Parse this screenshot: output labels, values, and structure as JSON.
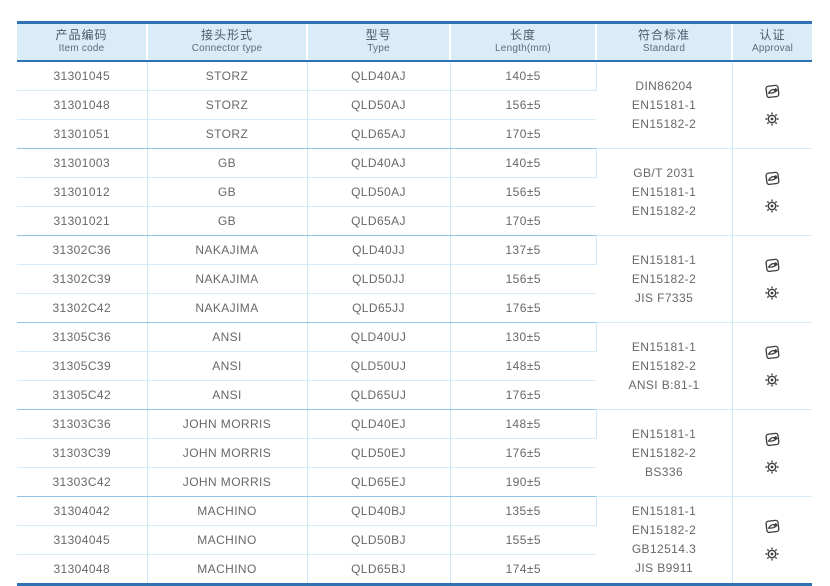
{
  "table": {
    "columns": [
      {
        "zh": "产品编码",
        "en": "Item code"
      },
      {
        "zh": "接头形式",
        "en": "Connector type"
      },
      {
        "zh": "型号",
        "en": "Type"
      },
      {
        "zh": "长度",
        "en": "Length(mm)"
      },
      {
        "zh": "符合标准",
        "en": "Standard"
      },
      {
        "zh": "认证",
        "en": "Approval"
      }
    ],
    "approval_icons": [
      "certification-stamp-icon",
      "wheel-mark-icon"
    ],
    "groups": [
      {
        "rows": [
          {
            "item_code": "31301045",
            "connector": "STORZ",
            "type": "QLD40AJ",
            "length": "140±5"
          },
          {
            "item_code": "31301048",
            "connector": "STORZ",
            "type": "QLD50AJ",
            "length": "156±5"
          },
          {
            "item_code": "31301051",
            "connector": "STORZ",
            "type": "QLD65AJ",
            "length": "170±5"
          }
        ],
        "standards": [
          "DIN86204",
          "EN15181-1",
          "EN15182-2"
        ]
      },
      {
        "rows": [
          {
            "item_code": "31301003",
            "connector": "GB",
            "type": "QLD40AJ",
            "length": "140±5"
          },
          {
            "item_code": "31301012",
            "connector": "GB",
            "type": "QLD50AJ",
            "length": "156±5"
          },
          {
            "item_code": "31301021",
            "connector": "GB",
            "type": "QLD65AJ",
            "length": "170±5"
          }
        ],
        "standards": [
          "GB/T 2031",
          "EN15181-1",
          "EN15182-2"
        ]
      },
      {
        "rows": [
          {
            "item_code": "31302C36",
            "connector": "NAKAJIMA",
            "type": "QLD40JJ",
            "length": "137±5"
          },
          {
            "item_code": "31302C39",
            "connector": "NAKAJIMA",
            "type": "QLD50JJ",
            "length": "156±5"
          },
          {
            "item_code": "31302C42",
            "connector": "NAKAJIMA",
            "type": "QLD65JJ",
            "length": "176±5"
          }
        ],
        "standards": [
          "EN15181-1",
          "EN15182-2",
          "JIS F7335"
        ]
      },
      {
        "rows": [
          {
            "item_code": "31305C36",
            "connector": "ANSI",
            "type": "QLD40UJ",
            "length": "130±5"
          },
          {
            "item_code": "31305C39",
            "connector": "ANSI",
            "type": "QLD50UJ",
            "length": "148±5"
          },
          {
            "item_code": "31305C42",
            "connector": "ANSI",
            "type": "QLD65UJ",
            "length": "176±5"
          }
        ],
        "standards": [
          "EN15181-1",
          "EN15182-2",
          "ANSI B:81-1"
        ]
      },
      {
        "rows": [
          {
            "item_code": "31303C36",
            "connector": "JOHN MORRIS",
            "type": "QLD40EJ",
            "length": "148±5"
          },
          {
            "item_code": "31303C39",
            "connector": "JOHN MORRIS",
            "type": "QLD50EJ",
            "length": "176±5"
          },
          {
            "item_code": "31303C42",
            "connector": "JOHN MORRIS",
            "type": "QLD65EJ",
            "length": "190±5"
          }
        ],
        "standards": [
          "EN15181-1",
          "EN15182-2",
          "BS336"
        ]
      },
      {
        "rows": [
          {
            "item_code": "31304042",
            "connector": "MACHINO",
            "type": "QLD40BJ",
            "length": "135±5"
          },
          {
            "item_code": "31304045",
            "connector": "MACHINO",
            "type": "QLD50BJ",
            "length": "155±5"
          },
          {
            "item_code": "31304048",
            "connector": "MACHINO",
            "type": "QLD65BJ",
            "length": "174±5"
          }
        ],
        "standards": [
          "EN15181-1",
          "EN15182-2",
          "GB12514.3",
          "JIS B9911"
        ]
      }
    ]
  },
  "colors": {
    "accent_border": "#2e74b5",
    "header_bg": "#d9ecf8",
    "header_text": "#4d5b6e",
    "body_text": "#686868",
    "row_line": "#d5ebf8",
    "group_line": "#94c4e8",
    "icon": "#3d3d3d"
  }
}
